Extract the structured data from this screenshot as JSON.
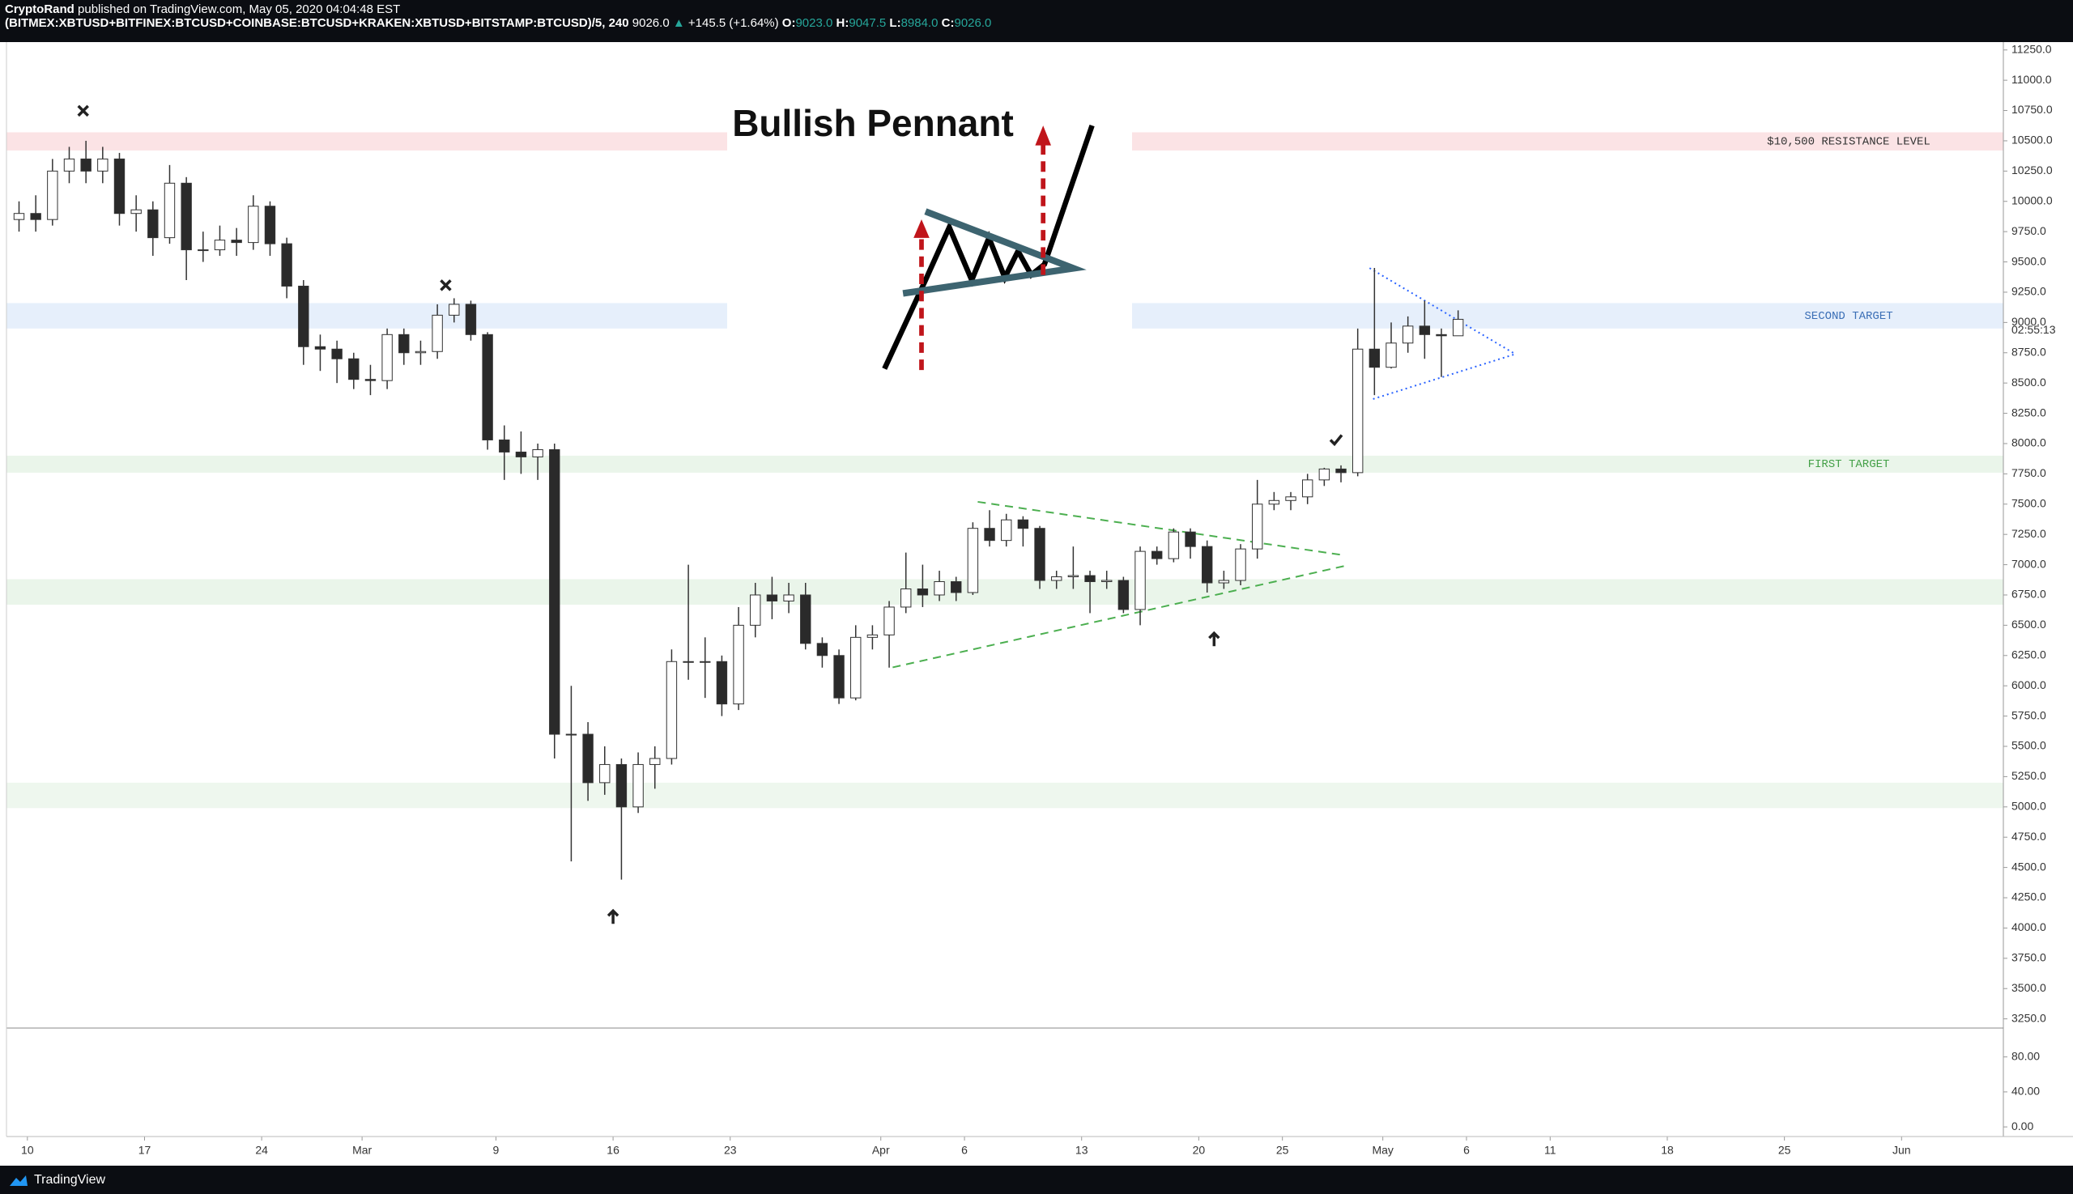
{
  "header": {
    "author": "CryptoRand",
    "published": "published on TradingView.com, May 05, 2020 04:04:48 EST",
    "symbol": "(BITMEX:XBTUSD+BITFINEX:BTCUSD+COINBASE:BTCUSD+KRAKEN:XBTUSD+BITSTAMP:BTCUSD)/5, 240",
    "last": "9026.0",
    "change": "+145.5 (+1.64%)",
    "open_label": "O:",
    "open": "9023.0",
    "high_label": "H:",
    "high": "9047.5",
    "low_label": "L:",
    "low": "8984.0",
    "close_label": "C:",
    "close": "9026.0"
  },
  "footer": {
    "brand": "TradingView"
  },
  "chart_data": [
    {
      "type": "candlestick",
      "title": "Bullish Pennant",
      "countdown": "02:55:13",
      "up_color": "#ffffff",
      "down_color": "#2a2a2a",
      "wick_color": "#333333",
      "grid": false,
      "xlim": [
        "2020-02-08T18:00",
        "2020-06-07T02:00"
      ],
      "xticks": [
        {
          "value": "2020-02-10",
          "label": "10"
        },
        {
          "value": "2020-02-17",
          "label": "17"
        },
        {
          "value": "2020-02-24",
          "label": "24"
        },
        {
          "value": "2020-03-01",
          "label": "Mar"
        },
        {
          "value": "2020-03-09",
          "label": "9"
        },
        {
          "value": "2020-03-16",
          "label": "16"
        },
        {
          "value": "2020-03-23",
          "label": "23"
        },
        {
          "value": "2020-04-01",
          "label": "Apr"
        },
        {
          "value": "2020-04-06",
          "label": "6"
        },
        {
          "value": "2020-04-13",
          "label": "13"
        },
        {
          "value": "2020-04-20",
          "label": "20"
        },
        {
          "value": "2020-04-25",
          "label": "25"
        },
        {
          "value": "2020-05-01",
          "label": "May"
        },
        {
          "value": "2020-05-06",
          "label": "6"
        },
        {
          "value": "2020-05-11",
          "label": "11"
        },
        {
          "value": "2020-05-18",
          "label": "18"
        },
        {
          "value": "2020-05-25",
          "label": "25"
        },
        {
          "value": "2020-06-01",
          "label": "Jun"
        }
      ],
      "ylim": [
        3174,
        11315
      ],
      "yticks": [
        {
          "value": 3250,
          "label": "3250.0"
        },
        {
          "value": 3500,
          "label": "3500.0"
        },
        {
          "value": 3750,
          "label": "3750.0"
        },
        {
          "value": 4000,
          "label": "4000.0"
        },
        {
          "value": 4250,
          "label": "4250.0"
        },
        {
          "value": 4500,
          "label": "4500.0"
        },
        {
          "value": 4750,
          "label": "4750.0"
        },
        {
          "value": 5000,
          "label": "5000.0"
        },
        {
          "value": 5250,
          "label": "5250.0"
        },
        {
          "value": 5500,
          "label": "5500.0"
        },
        {
          "value": 5750,
          "label": "5750.0"
        },
        {
          "value": 6000,
          "label": "6000.0"
        },
        {
          "value": 6250,
          "label": "6250.0"
        },
        {
          "value": 6500,
          "label": "6500.0"
        },
        {
          "value": 6750,
          "label": "6750.0"
        },
        {
          "value": 7000,
          "label": "7000.0"
        },
        {
          "value": 7250,
          "label": "7250.0"
        },
        {
          "value": 7500,
          "label": "7500.0"
        },
        {
          "value": 7750,
          "label": "7750.0"
        },
        {
          "value": 8000,
          "label": "8000.0"
        },
        {
          "value": 8250,
          "label": "8250.0"
        },
        {
          "value": 8500,
          "label": "8500.0"
        },
        {
          "value": 8750,
          "label": "8750.0"
        },
        {
          "value": 9000,
          "label": "9000.0"
        },
        {
          "value": 9250,
          "label": "9250.0"
        },
        {
          "value": 9500,
          "label": "9500.0"
        },
        {
          "value": 9750,
          "label": "9750.0"
        },
        {
          "value": 10000,
          "label": "10000.0"
        },
        {
          "value": 10250,
          "label": "10250.0"
        },
        {
          "value": 10500,
          "label": "10500.0"
        },
        {
          "value": 10750,
          "label": "10750.0"
        },
        {
          "value": 11000,
          "label": "11000.0"
        },
        {
          "value": 11250,
          "label": "11250.0"
        }
      ],
      "zones": [
        {
          "low": 10420,
          "high": 10570,
          "color": "#fbe3e5",
          "label": "$10,500 RESISTANCE LEVEL",
          "label_color": "#333333"
        },
        {
          "low": 8950,
          "high": 9160,
          "color": "#e6effb",
          "label": "SECOND TARGET",
          "label_color": "#3b6fb6"
        },
        {
          "low": 7760,
          "high": 7900,
          "color": "#eaf5ea",
          "label": "FIRST TARGET",
          "label_color": "#43a047"
        },
        {
          "low": 6670,
          "high": 6880,
          "color": "#eaf5ea"
        },
        {
          "low": 4990,
          "high": 5200,
          "color": "#eef7ee"
        }
      ],
      "trendlines": [
        {
          "color": "#4caf50",
          "style": "dashed",
          "points": [
            [
              "2020-04-06T19:00",
              7519
            ],
            [
              "2020-04-28T14:00",
              7080
            ]
          ]
        },
        {
          "color": "#4caf50",
          "style": "dashed",
          "points": [
            [
              "2020-04-01T17:00",
              6152
            ],
            [
              "2020-04-28T19:00",
              6992
            ]
          ]
        },
        {
          "color": "#2962ff",
          "style": "dotted",
          "points": [
            [
              "2020-04-30T05:00",
              9449
            ],
            [
              "2020-05-08T22:00",
              8739
            ]
          ]
        },
        {
          "color": "#2962ff",
          "style": "dotted",
          "points": [
            [
              "2020-04-30T10:00",
              8368
            ],
            [
              "2020-05-08T22:00",
              8739
            ]
          ]
        }
      ],
      "markers": [
        {
          "symbol": "cross",
          "x": "2020-02-13T08:00",
          "y": 10748
        },
        {
          "symbol": "cross",
          "x": "2020-03-06T00:00",
          "y": 9307
        },
        {
          "symbol": "arrow-up",
          "x": "2020-03-16T00:00",
          "y": 4088
        },
        {
          "symbol": "arrow-up",
          "x": "2020-04-20T22:00",
          "y": 6381
        },
        {
          "symbol": "check",
          "x": "2020-04-28T05:00",
          "y": 8030
        }
      ],
      "x": [
        "2020-02-09",
        "2020-02-10",
        "2020-02-11",
        "2020-02-12",
        "2020-02-13",
        "2020-02-14",
        "2020-02-15",
        "2020-02-16",
        "2020-02-17",
        "2020-02-18",
        "2020-02-19",
        "2020-02-20",
        "2020-02-21",
        "2020-02-22",
        "2020-02-23",
        "2020-02-24",
        "2020-02-25",
        "2020-02-26",
        "2020-02-27",
        "2020-02-28",
        "2020-02-29",
        "2020-03-01",
        "2020-03-02",
        "2020-03-03",
        "2020-03-04",
        "2020-03-05",
        "2020-03-06",
        "2020-03-07",
        "2020-03-08",
        "2020-03-09",
        "2020-03-10",
        "2020-03-11",
        "2020-03-12",
        "2020-03-13",
        "2020-03-14",
        "2020-03-15",
        "2020-03-16",
        "2020-03-17",
        "2020-03-18",
        "2020-03-19",
        "2020-03-20",
        "2020-03-21",
        "2020-03-22",
        "2020-03-23",
        "2020-03-24",
        "2020-03-25",
        "2020-03-26",
        "2020-03-27",
        "2020-03-28",
        "2020-03-29",
        "2020-03-30",
        "2020-03-31",
        "2020-04-01",
        "2020-04-02",
        "2020-04-03",
        "2020-04-04",
        "2020-04-05",
        "2020-04-06",
        "2020-04-07",
        "2020-04-08",
        "2020-04-09",
        "2020-04-10",
        "2020-04-11",
        "2020-04-12",
        "2020-04-13",
        "2020-04-14",
        "2020-04-15",
        "2020-04-16",
        "2020-04-17",
        "2020-04-18",
        "2020-04-19",
        "2020-04-20",
        "2020-04-21",
        "2020-04-22",
        "2020-04-23",
        "2020-04-24",
        "2020-04-25",
        "2020-04-26",
        "2020-04-27",
        "2020-04-28",
        "2020-04-29",
        "2020-04-30",
        "2020-05-01",
        "2020-05-02",
        "2020-05-03",
        "2020-05-04",
        "2020-05-05"
      ],
      "open": [
        9850,
        9900,
        9850,
        10250,
        10350,
        10250,
        10350,
        9900,
        9930,
        9700,
        10150,
        9600,
        9600,
        9680,
        9660,
        9960,
        9650,
        9300,
        8800,
        8780,
        8700,
        8530,
        8520,
        8900,
        8750,
        8760,
        9060,
        9150,
        8900,
        8030,
        7930,
        7890,
        7950,
        5600,
        5600,
        5200,
        5350,
        5000,
        5350,
        5400,
        6200,
        6200,
        6200,
        5850,
        6500,
        6750,
        6700,
        6750,
        6350,
        6250,
        5900,
        6400,
        6420,
        6650,
        6800,
        6750,
        6860,
        6770,
        7300,
        7200,
        7370,
        7300,
        6870,
        6900,
        6910,
        6860,
        6870,
        6630,
        7110,
        7050,
        7270,
        7150,
        6850,
        6870,
        7130,
        7500,
        7530,
        7560,
        7700,
        7790,
        7760,
        8780,
        8630,
        8830,
        8970,
        8900,
        8890
      ],
      "high": [
        10000,
        10050,
        10350,
        10450,
        10500,
        10450,
        10400,
        10050,
        10000,
        10300,
        10200,
        9750,
        9800,
        9780,
        10050,
        10000,
        9700,
        9350,
        8900,
        8850,
        8750,
        8650,
        8950,
        8950,
        8850,
        9150,
        9200,
        9180,
        8920,
        8150,
        8100,
        8000,
        8000,
        6000,
        5700,
        5500,
        5400,
        5450,
        5500,
        6300,
        7000,
        6400,
        6250,
        6650,
        6850,
        6900,
        6850,
        6850,
        6400,
        6300,
        6500,
        6500,
        6700,
        7100,
        7000,
        6950,
        6900,
        7350,
        7450,
        7420,
        7400,
        7320,
        6950,
        7150,
        6950,
        6950,
        6900,
        7150,
        7150,
        7300,
        7300,
        7200,
        6950,
        7170,
        7700,
        7600,
        7600,
        7750,
        7800,
        7820,
        8950,
        9450,
        9000,
        9050,
        9180,
        8950,
        9100
      ],
      "low": [
        9750,
        9750,
        9800,
        10150,
        10150,
        10150,
        9800,
        9750,
        9550,
        9650,
        9350,
        9500,
        9550,
        9550,
        9600,
        9550,
        9200,
        8650,
        8600,
        8500,
        8450,
        8400,
        8450,
        8650,
        8650,
        8700,
        9000,
        8850,
        7950,
        7700,
        7750,
        7700,
        5400,
        4550,
        5050,
        5100,
        4400,
        4950,
        5150,
        5350,
        6050,
        5900,
        5750,
        5800,
        6400,
        6550,
        6600,
        6300,
        6150,
        5850,
        5880,
        6300,
        6150,
        6600,
        6650,
        6700,
        6700,
        6750,
        7150,
        7150,
        7150,
        6800,
        6800,
        6800,
        6600,
        6800,
        6600,
        6500,
        7000,
        7020,
        7050,
        6770,
        6800,
        6830,
        7050,
        7450,
        7450,
        7500,
        7650,
        7680,
        7730,
        8400,
        8620,
        8750,
        8700,
        8550,
        8950
      ],
      "close": [
        9900,
        9850,
        10250,
        10350,
        10250,
        10350,
        9900,
        9930,
        9700,
        10150,
        9600,
        9600,
        9680,
        9660,
        9960,
        9650,
        9300,
        8800,
        8780,
        8700,
        8530,
        8520,
        8900,
        8750,
        8760,
        9060,
        9150,
        8900,
        8030,
        7930,
        7890,
        7950,
        5600,
        5600,
        5200,
        5350,
        5000,
        5350,
        5400,
        6200,
        6200,
        6200,
        5850,
        6500,
        6750,
        6700,
        6750,
        6350,
        6250,
        5900,
        6400,
        6420,
        6650,
        6800,
        6750,
        6860,
        6770,
        7300,
        7200,
        7370,
        7300,
        6870,
        6900,
        6910,
        6860,
        6870,
        6630,
        7110,
        7050,
        7270,
        7150,
        6850,
        6870,
        7130,
        7500,
        7530,
        7560,
        7700,
        7790,
        7760,
        8780,
        8630,
        8830,
        8970,
        8900,
        8890,
        9026
      ]
    },
    {
      "type": "panel",
      "ylim": [
        -11,
        113
      ],
      "yticks": [
        {
          "value": 0,
          "label": "0.00"
        },
        {
          "value": 40,
          "label": "40.00"
        },
        {
          "value": 80,
          "label": "80.00"
        }
      ]
    }
  ]
}
